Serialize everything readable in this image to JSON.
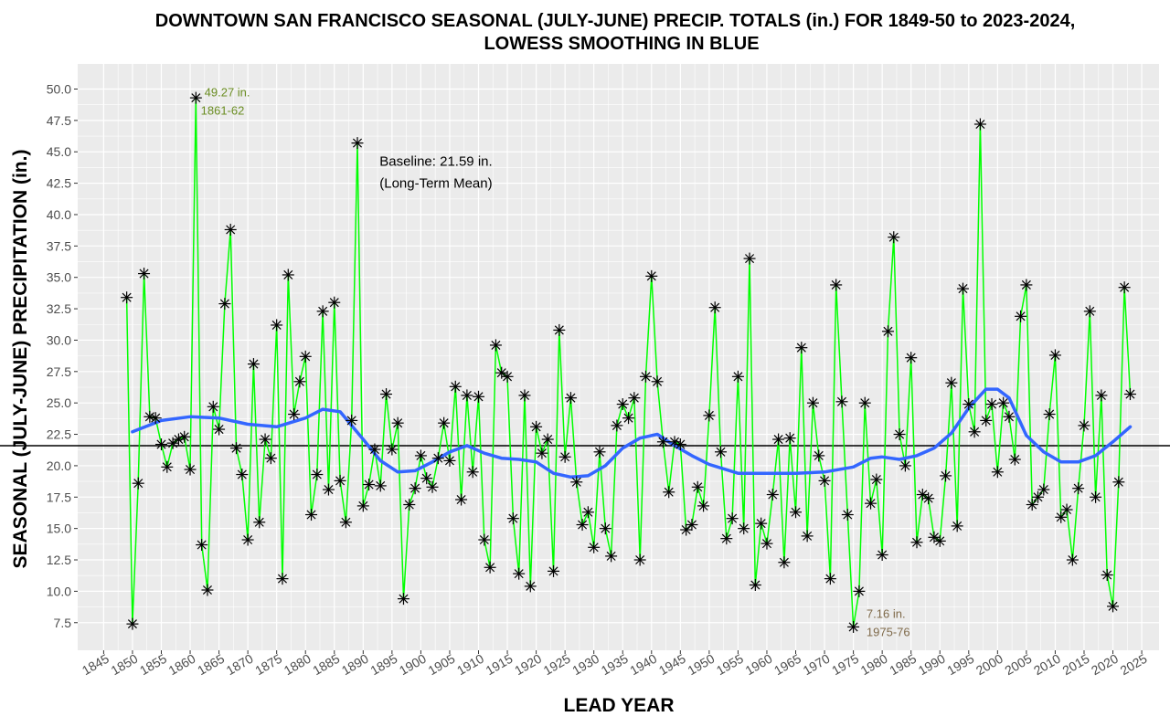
{
  "chart_data": {
    "type": "line",
    "title": [
      "DOWNTOWN SAN FRANCISCO SEASONAL (JULY-JUNE) PRECIP. TOTALS (in.) FOR 1849-50 to 2023-2024,",
      "LOWESS SMOOTHING IN BLUE"
    ],
    "xlabel": "LEAD YEAR",
    "ylabel": "SEASONAL (JULY-JUNE) PRECIPITATION (in.)",
    "xlim": [
      1840.5,
      2028
    ],
    "ylim": [
      5.3,
      52.0
    ],
    "x_ticks": [
      1845,
      1850,
      1855,
      1860,
      1865,
      1870,
      1875,
      1880,
      1885,
      1890,
      1895,
      1900,
      1905,
      1910,
      1915,
      1920,
      1925,
      1930,
      1935,
      1940,
      1945,
      1950,
      1955,
      1960,
      1965,
      1970,
      1975,
      1980,
      1985,
      1990,
      1995,
      2000,
      2005,
      2010,
      2015,
      2020,
      2025
    ],
    "y_ticks": [
      7.5,
      10.0,
      12.5,
      15.0,
      17.5,
      20.0,
      22.5,
      25.0,
      27.5,
      30.0,
      32.5,
      35.0,
      37.5,
      40.0,
      42.5,
      45.0,
      47.5,
      50.0
    ],
    "grid": true,
    "series": [
      {
        "line_color": "#00ff00",
        "marker": "asterisk",
        "x": [
          1849,
          1850,
          1851,
          1852,
          1853,
          1854,
          1855,
          1856,
          1857,
          1858,
          1859,
          1860,
          1861,
          1862,
          1863,
          1864,
          1865,
          1866,
          1867,
          1868,
          1869,
          1870,
          1871,
          1872,
          1873,
          1874,
          1875,
          1876,
          1877,
          1878,
          1879,
          1880,
          1881,
          1882,
          1883,
          1884,
          1885,
          1886,
          1887,
          1888,
          1889,
          1890,
          1891,
          1892,
          1893,
          1894,
          1895,
          1896,
          1897,
          1898,
          1899,
          1900,
          1901,
          1902,
          1903,
          1904,
          1905,
          1906,
          1907,
          1908,
          1909,
          1910,
          1911,
          1912,
          1913,
          1914,
          1915,
          1916,
          1917,
          1918,
          1919,
          1920,
          1921,
          1922,
          1923,
          1924,
          1925,
          1926,
          1927,
          1928,
          1929,
          1930,
          1931,
          1932,
          1933,
          1934,
          1935,
          1936,
          1937,
          1938,
          1939,
          1940,
          1941,
          1942,
          1943,
          1944,
          1945,
          1946,
          1947,
          1948,
          1949,
          1950,
          1951,
          1952,
          1953,
          1954,
          1955,
          1956,
          1957,
          1958,
          1959,
          1960,
          1961,
          1962,
          1963,
          1964,
          1965,
          1966,
          1967,
          1968,
          1969,
          1970,
          1971,
          1972,
          1973,
          1974,
          1975,
          1976,
          1977,
          1978,
          1979,
          1980,
          1981,
          1982,
          1983,
          1984,
          1985,
          1986,
          1987,
          1988,
          1989,
          1990,
          1991,
          1992,
          1993,
          1994,
          1995,
          1996,
          1997,
          1998,
          1999,
          2000,
          2001,
          2002,
          2003,
          2004,
          2005,
          2006,
          2007,
          2008,
          2009,
          2010,
          2011,
          2012,
          2013,
          2014,
          2015,
          2016,
          2017,
          2018,
          2019,
          2020,
          2021,
          2022,
          2023
        ],
        "values": [
          33.4,
          7.4,
          18.6,
          35.3,
          23.9,
          23.8,
          21.7,
          19.9,
          21.8,
          22.1,
          22.3,
          19.7,
          49.3,
          13.7,
          10.1,
          24.7,
          22.9,
          32.9,
          38.8,
          21.4,
          19.3,
          14.1,
          28.1,
          15.5,
          22.1,
          20.6,
          31.2,
          11.0,
          35.2,
          24.1,
          26.7,
          28.7,
          16.1,
          19.3,
          32.3,
          18.1,
          33.0,
          18.8,
          15.5,
          23.6,
          45.7,
          16.8,
          18.5,
          21.3,
          18.4,
          25.7,
          21.3,
          23.4,
          9.4,
          16.9,
          18.2,
          20.8,
          19.0,
          18.3,
          20.6,
          23.4,
          20.4,
          26.3,
          17.3,
          25.6,
          19.5,
          25.5,
          14.1,
          11.9,
          29.6,
          27.4,
          27.1,
          15.8,
          11.4,
          25.6,
          10.4,
          23.1,
          21.0,
          22.1,
          11.6,
          30.8,
          20.7,
          25.4,
          18.7,
          15.3,
          16.3,
          13.5,
          21.1,
          15.0,
          12.8,
          23.2,
          24.9,
          23.8,
          25.4,
          12.5,
          27.1,
          35.1,
          26.7,
          21.9,
          17.9,
          21.9,
          21.7,
          14.9,
          15.3,
          18.3,
          16.8,
          24.0,
          32.6,
          21.1,
          14.2,
          15.8,
          27.1,
          15.0,
          36.5,
          10.5,
          15.4,
          13.8,
          17.7,
          22.1,
          12.3,
          22.2,
          16.3,
          29.4,
          14.4,
          25.0,
          20.8,
          18.8,
          11.0,
          34.4,
          25.1,
          16.1,
          7.16,
          10.0,
          25.0,
          17.0,
          18.9,
          12.9,
          30.7,
          38.2,
          22.5,
          20.0,
          28.6,
          13.9,
          17.7,
          17.4,
          14.3,
          14.0,
          19.2,
          26.6,
          15.2,
          34.1,
          24.9,
          22.7,
          47.2,
          23.6,
          24.9,
          19.5,
          25.0,
          23.9,
          20.5,
          31.9,
          34.4,
          16.9,
          17.5,
          18.1,
          24.1,
          28.8,
          15.9,
          16.5,
          12.5,
          18.2,
          23.2,
          32.3,
          17.5,
          25.6,
          11.3,
          8.8,
          18.7,
          34.2,
          25.7
        ]
      },
      {
        "line_color": "#3366ff",
        "x": [
          1850,
          1855,
          1860,
          1865,
          1870,
          1875,
          1880,
          1883,
          1886,
          1890,
          1893,
          1896,
          1899,
          1902,
          1905,
          1908,
          1911,
          1914,
          1917,
          1920,
          1923,
          1926,
          1929,
          1932,
          1935,
          1938,
          1941,
          1944,
          1947,
          1950,
          1955,
          1960,
          1965,
          1970,
          1975,
          1978,
          1980,
          1983,
          1986,
          1989,
          1992,
          1995,
          1998,
          2000,
          2002,
          2005,
          2008,
          2011,
          2014,
          2017,
          2020,
          2023
        ],
        "values": [
          22.7,
          23.6,
          23.9,
          23.8,
          23.3,
          23.1,
          23.8,
          24.5,
          24.3,
          22.1,
          20.4,
          19.5,
          19.6,
          20.3,
          21.1,
          21.6,
          21.0,
          20.6,
          20.5,
          20.3,
          19.4,
          19.1,
          19.2,
          20.0,
          21.4,
          22.2,
          22.5,
          21.6,
          20.8,
          20.1,
          19.4,
          19.4,
          19.4,
          19.5,
          19.9,
          20.6,
          20.7,
          20.5,
          20.8,
          21.4,
          22.6,
          24.6,
          26.1,
          26.1,
          25.4,
          22.4,
          21.1,
          20.3,
          20.3,
          20.8,
          21.9,
          23.1
        ]
      }
    ],
    "baseline": {
      "value": 21.59,
      "line_color": "#000000"
    },
    "annotations": [
      {
        "x": 1862,
        "y": 49.27,
        "text": [
          "49.27 in.",
          "1861-62"
        ],
        "color": "#6b8e23"
      },
      {
        "x": 1976,
        "y": 7.16,
        "text": [
          "7.16 in.",
          "1975-76"
        ],
        "color": "#7f6a4a"
      },
      {
        "x": 1893,
        "y": 43.3,
        "text": [
          "Baseline: 21.59 in.",
          "(Long-Term Mean)"
        ],
        "color": "#000000"
      }
    ]
  }
}
